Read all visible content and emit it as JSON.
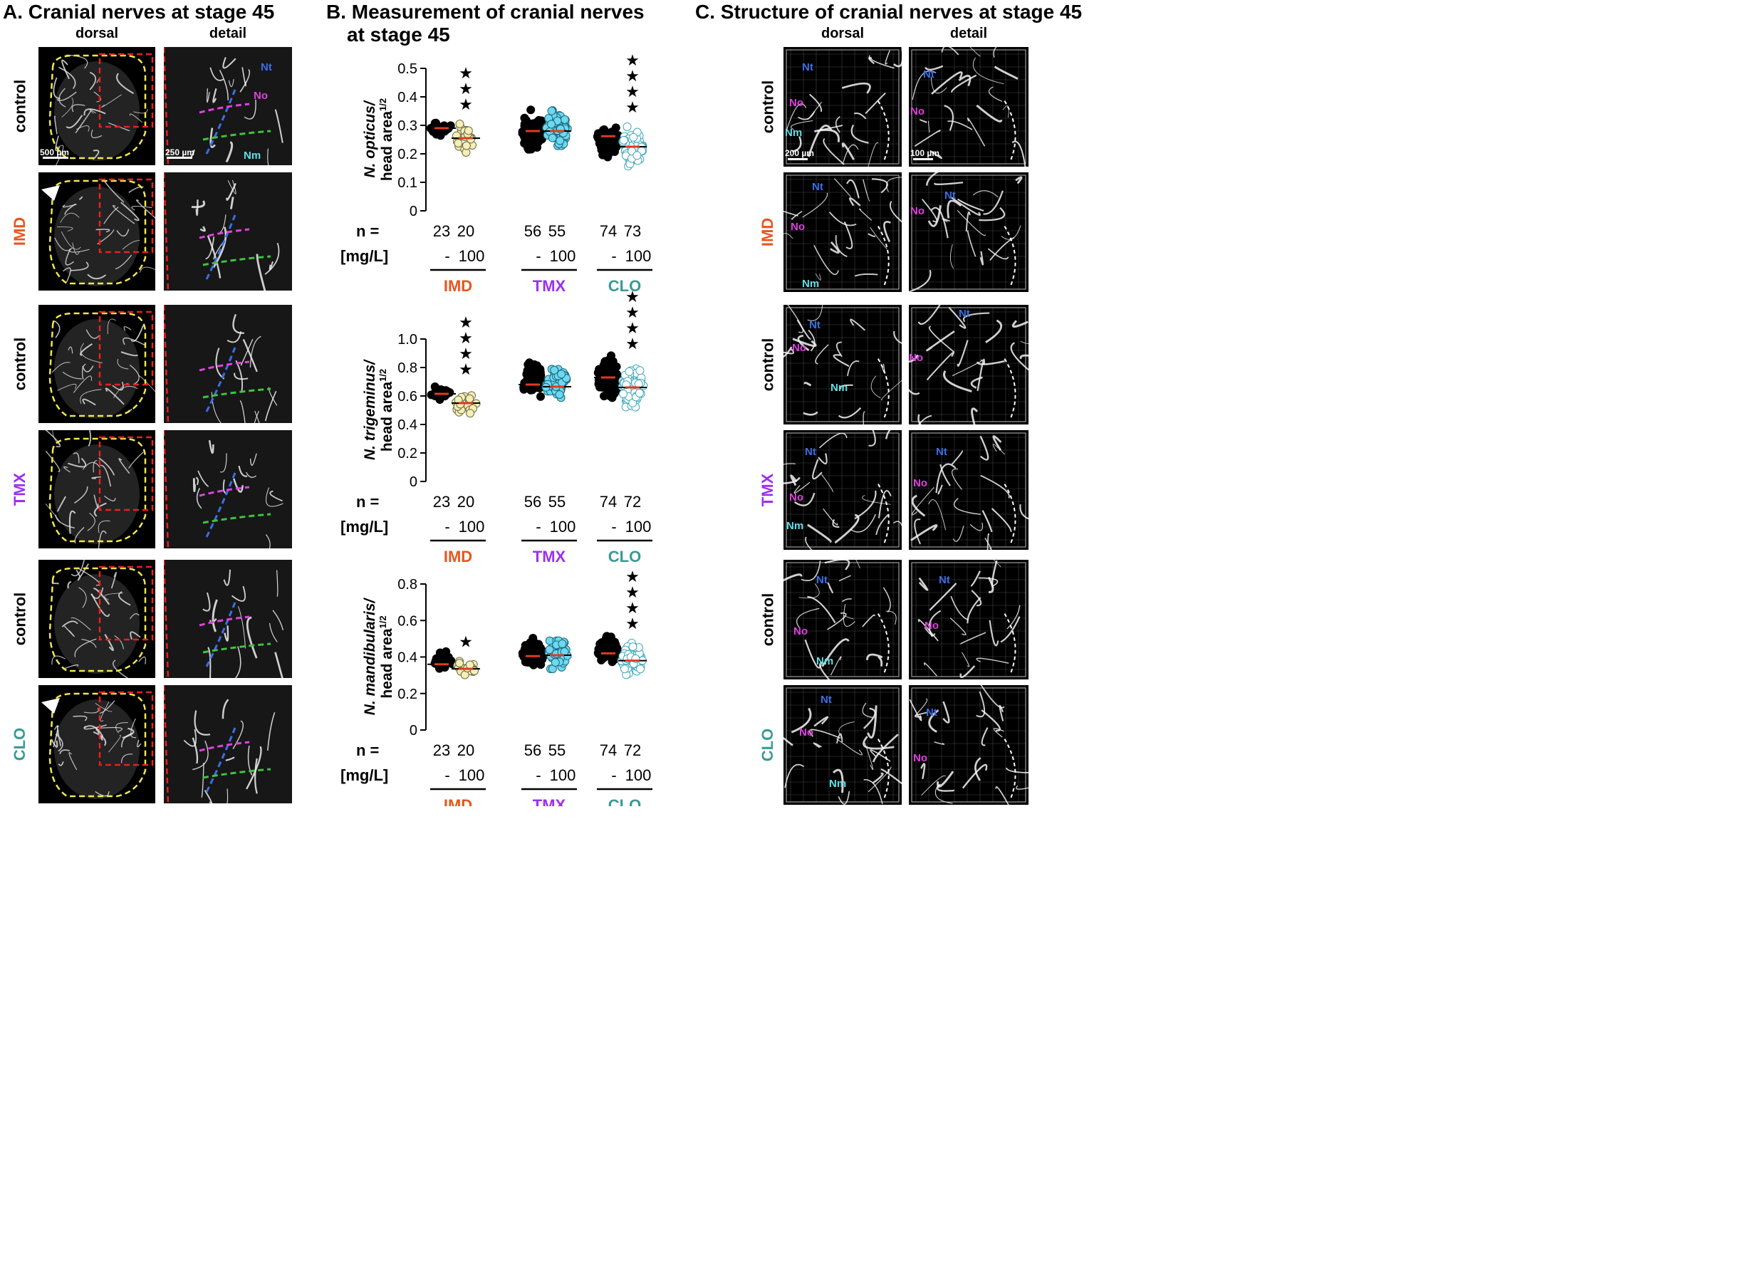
{
  "panel_a": {
    "title": "A. Cranial nerves at stage 45",
    "col_dorsal": "dorsal",
    "col_detail": "detail",
    "rows": [
      {
        "label": "control",
        "color": "#000000"
      },
      {
        "label": "IMD",
        "color": "#e8561e"
      },
      {
        "label": "control",
        "color": "#000000"
      },
      {
        "label": "TMX",
        "color": "#9b30f0"
      },
      {
        "label": "control",
        "color": "#000000"
      },
      {
        "label": "CLO",
        "color": "#3a9a94"
      }
    ],
    "scalebar_dorsal": "500 µm",
    "scalebar_detail": "250 µm",
    "nerve_nt": "Nt",
    "nerve_no": "No",
    "nerve_nm": "Nm"
  },
  "panel_b": {
    "title_line1": "B. Measurement of cranial nerves",
    "title_line2": "at stage 45",
    "n_label": "n =",
    "dose_label": "[mg/L]",
    "dose_control": "-",
    "dose_treated": "100",
    "colors": {
      "IMD": "#e8561e",
      "TMX": "#9b30f0",
      "CLO": "#3a9a94",
      "control_fill": "#000000",
      "IMD_fill": "#f5eeb8",
      "TMX_fill": "#6fd8ee",
      "CLO_fill": "#ffffff",
      "CLO_stroke": "#3fa8bc",
      "mean_line": "#e03a1e"
    }
  },
  "chart_data": [
    {
      "type": "scatter",
      "ylabel_italic": "N. opticus/",
      "ylabel_plain": "head area",
      "ylabel_sup": "1/2",
      "ylim": [
        0,
        0.5
      ],
      "yticks": [
        "0",
        "0.1",
        "0.2",
        "0.3",
        "0.4",
        "0.5"
      ],
      "groups": [
        "IMD",
        "TMX",
        "CLO"
      ],
      "n": [
        23,
        20,
        56,
        55,
        74,
        73
      ],
      "series": [
        {
          "name": "IMD",
          "control_mean": 0.29,
          "treated_mean": 0.255,
          "control_range": [
            0.25,
            0.32
          ],
          "treated_range": [
            0.2,
            0.32
          ],
          "stars": "★★★"
        },
        {
          "name": "TMX",
          "control_mean": 0.28,
          "treated_mean": 0.28,
          "control_range": [
            0.19,
            0.36
          ],
          "treated_range": [
            0.2,
            0.38
          ],
          "stars": ""
        },
        {
          "name": "CLO",
          "control_mean": 0.262,
          "treated_mean": 0.225,
          "control_range": [
            0.17,
            0.31
          ],
          "treated_range": [
            0.14,
            0.31
          ],
          "stars": "★★★★"
        }
      ]
    },
    {
      "type": "scatter",
      "ylabel_italic": "N. trigeminus/",
      "ylabel_plain": "head area",
      "ylabel_sup": "1/2",
      "ylim": [
        0,
        1.0
      ],
      "yticks": [
        "0",
        "0.2",
        "0.4",
        "0.6",
        "0.8",
        "1.0"
      ],
      "groups": [
        "IMD",
        "TMX",
        "CLO"
      ],
      "n": [
        23,
        20,
        56,
        55,
        74,
        72
      ],
      "series": [
        {
          "name": "IMD",
          "control_mean": 0.615,
          "treated_mean": 0.55,
          "control_range": [
            0.56,
            0.68
          ],
          "treated_range": [
            0.39,
            0.68
          ],
          "stars": "★★★★"
        },
        {
          "name": "TMX",
          "control_mean": 0.68,
          "treated_mean": 0.665,
          "control_range": [
            0.56,
            0.9
          ],
          "treated_range": [
            0.54,
            0.86
          ],
          "stars": ""
        },
        {
          "name": "CLO",
          "control_mean": 0.73,
          "treated_mean": 0.66,
          "control_range": [
            0.56,
            0.92
          ],
          "treated_range": [
            0.47,
            0.86
          ],
          "stars": "★★★★"
        }
      ]
    },
    {
      "type": "scatter",
      "ylabel_italic": "N. mandibularis/",
      "ylabel_plain": "head area",
      "ylabel_sup": "1/2",
      "ylim": [
        0,
        0.8
      ],
      "yticks": [
        "0",
        "0.2",
        "0.4",
        "0.6",
        "0.8"
      ],
      "groups": [
        "IMD",
        "TMX",
        "CLO"
      ],
      "n": [
        23,
        20,
        56,
        55,
        74,
        72
      ],
      "series": [
        {
          "name": "IMD",
          "control_mean": 0.36,
          "treated_mean": 0.335,
          "control_range": [
            0.3,
            0.45
          ],
          "treated_range": [
            0.28,
            0.4
          ],
          "stars": "★"
        },
        {
          "name": "TMX",
          "control_mean": 0.405,
          "treated_mean": 0.41,
          "control_range": [
            0.32,
            0.52
          ],
          "treated_range": [
            0.31,
            0.54
          ],
          "stars": ""
        },
        {
          "name": "CLO",
          "control_mean": 0.42,
          "treated_mean": 0.38,
          "control_range": [
            0.34,
            0.54
          ],
          "treated_range": [
            0.28,
            0.5
          ],
          "stars": "★★★★"
        }
      ]
    }
  ],
  "panel_c": {
    "title": "C. Structure of cranial nerves at stage 45",
    "col_dorsal": "dorsal",
    "col_detail": "detail",
    "rows": [
      {
        "label": "control",
        "color": "#000000"
      },
      {
        "label": "IMD",
        "color": "#e8561e"
      },
      {
        "label": "control",
        "color": "#000000"
      },
      {
        "label": "TMX",
        "color": "#9b30f0"
      },
      {
        "label": "control",
        "color": "#000000"
      },
      {
        "label": "CLO",
        "color": "#3a9a94"
      }
    ],
    "scalebar_dorsal": "200 µm",
    "scalebar_detail": "100 µm"
  }
}
